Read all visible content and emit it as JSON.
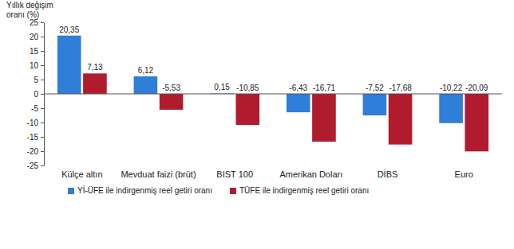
{
  "chart_data": {
    "type": "bar",
    "y_label": "Yıllık değişim oranı (%)",
    "categories": [
      "Külçe altın",
      "Mevduat faizi (brüt)",
      "BIST 100",
      "Amerikan Doları",
      "DİBS",
      "Euro"
    ],
    "series": [
      {
        "name": "Yİ-ÜFE ile indirgenmiş reel getiri oranı",
        "color": "#2f7ed8",
        "values": [
          20.35,
          6.12,
          0.15,
          -6.43,
          -7.52,
          -10.22
        ],
        "value_labels": [
          "20,35",
          "6,12",
          "0,15",
          "-6,43",
          "-7,52",
          "-10,22"
        ]
      },
      {
        "name": "TÜFE ile indirgenmiş reel getiri oranı",
        "color": "#b01c2e",
        "values": [
          7.13,
          -5.53,
          -10.85,
          -16.71,
          -17.68,
          -20.09
        ],
        "value_labels": [
          "7,13",
          "-5,53",
          "-10,85",
          "-16,71",
          "-17,68",
          "-20,09"
        ]
      }
    ],
    "ylim": [
      -25,
      25
    ],
    "yticks": [
      -25,
      -20,
      -15,
      -10,
      -5,
      0,
      5,
      10,
      15,
      20,
      25
    ],
    "grid": false,
    "legend": "bottom",
    "data_labels": true
  }
}
